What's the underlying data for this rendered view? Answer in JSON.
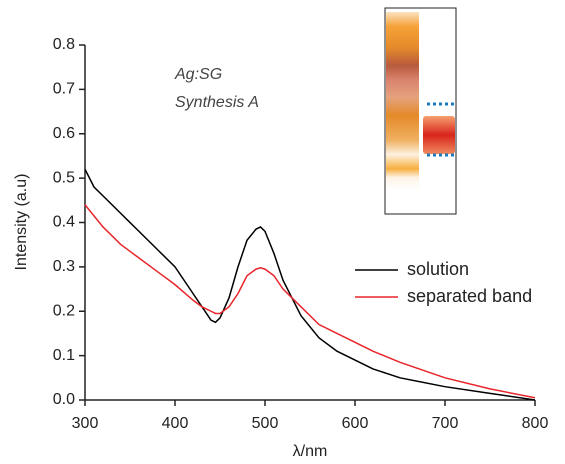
{
  "chart_data": {
    "type": "line",
    "xlabel": "λ/nm",
    "ylabel": "Intensity (a.u)",
    "annotations": [
      "Ag:SG",
      "Synthesis A"
    ],
    "x": [
      300,
      310,
      320,
      340,
      360,
      380,
      400,
      420,
      430,
      440,
      445,
      450,
      460,
      470,
      480,
      490,
      495,
      500,
      510,
      520,
      540,
      560,
      580,
      600,
      620,
      650,
      700,
      750,
      800
    ],
    "series": [
      {
        "name": "solution",
        "color": "#000000",
        "values": [
          0.52,
          0.48,
          0.46,
          0.42,
          0.38,
          0.34,
          0.3,
          0.24,
          0.21,
          0.18,
          0.175,
          0.185,
          0.23,
          0.3,
          0.36,
          0.385,
          0.39,
          0.38,
          0.33,
          0.27,
          0.19,
          0.14,
          0.11,
          0.09,
          0.07,
          0.05,
          0.03,
          0.015,
          0.0
        ]
      },
      {
        "name": "separated band",
        "color": "#e8262b",
        "values": [
          0.44,
          0.415,
          0.39,
          0.35,
          0.32,
          0.29,
          0.26,
          0.225,
          0.21,
          0.2,
          0.195,
          0.195,
          0.21,
          0.24,
          0.28,
          0.295,
          0.298,
          0.295,
          0.28,
          0.25,
          0.21,
          0.17,
          0.15,
          0.13,
          0.11,
          0.085,
          0.05,
          0.025,
          0.005
        ]
      }
    ],
    "xlim": [
      300,
      800
    ],
    "xticks": [
      300,
      400,
      500,
      600,
      700,
      800
    ],
    "ylim": [
      0,
      0.8
    ],
    "yticks": [
      {
        "value": 0,
        "label": "0.0"
      },
      0.1,
      0.2,
      0.3,
      0.4,
      0.5,
      0.6,
      0.7,
      0.8
    ],
    "legend": "right",
    "grid": false
  }
}
